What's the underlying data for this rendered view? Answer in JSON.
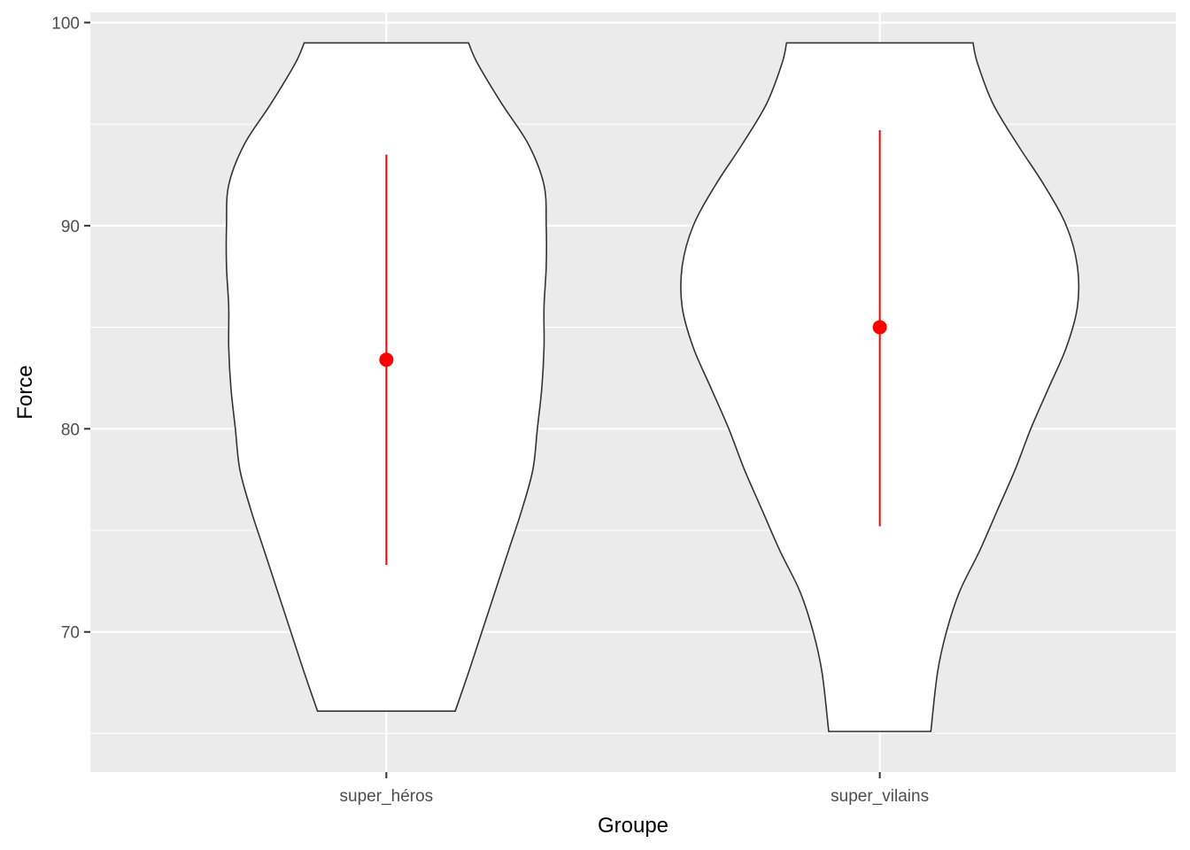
{
  "chart_data": {
    "type": "violin",
    "title": "",
    "xlabel": "Groupe",
    "ylabel": "Force",
    "categories": [
      "super_héros",
      "super_vilains"
    ],
    "ylim": [
      63.1,
      100.5
    ],
    "y_ticks": [
      70,
      80,
      90,
      100
    ],
    "y_tick_labels": [
      "70",
      "80",
      "90",
      "100"
    ],
    "grid": true,
    "panel_background": "#ebebeb",
    "violin_fill": "#ffffff",
    "violin_outline": "#333333",
    "summary_color": "#ff0000",
    "violins": [
      {
        "category": "super_héros",
        "min": 66.1,
        "max": 99,
        "density_profile": [
          {
            "y": 66.1,
            "width": 0.31
          },
          {
            "y": 68,
            "width": 0.37
          },
          {
            "y": 70,
            "width": 0.43
          },
          {
            "y": 72,
            "width": 0.49
          },
          {
            "y": 74,
            "width": 0.55
          },
          {
            "y": 76,
            "width": 0.61
          },
          {
            "y": 78,
            "width": 0.66
          },
          {
            "y": 80,
            "width": 0.68
          },
          {
            "y": 82,
            "width": 0.7
          },
          {
            "y": 84,
            "width": 0.71
          },
          {
            "y": 86,
            "width": 0.71
          },
          {
            "y": 88,
            "width": 0.72
          },
          {
            "y": 90,
            "width": 0.72
          },
          {
            "y": 92,
            "width": 0.71
          },
          {
            "y": 94,
            "width": 0.64
          },
          {
            "y": 96,
            "width": 0.52
          },
          {
            "y": 98,
            "width": 0.41
          },
          {
            "y": 99,
            "width": 0.37
          }
        ],
        "mean": 83.4,
        "lower": 73.3,
        "upper": 93.5
      },
      {
        "category": "super_vilains",
        "min": 65.1,
        "max": 99,
        "density_profile": [
          {
            "y": 65.1,
            "width": 0.23
          },
          {
            "y": 68,
            "width": 0.26
          },
          {
            "y": 70,
            "width": 0.3
          },
          {
            "y": 72,
            "width": 0.36
          },
          {
            "y": 74,
            "width": 0.45
          },
          {
            "y": 76,
            "width": 0.53
          },
          {
            "y": 78,
            "width": 0.61
          },
          {
            "y": 80,
            "width": 0.68
          },
          {
            "y": 82,
            "width": 0.76
          },
          {
            "y": 84,
            "width": 0.84
          },
          {
            "y": 86,
            "width": 0.89
          },
          {
            "y": 88,
            "width": 0.89
          },
          {
            "y": 90,
            "width": 0.84
          },
          {
            "y": 92,
            "width": 0.74
          },
          {
            "y": 94,
            "width": 0.62
          },
          {
            "y": 96,
            "width": 0.51
          },
          {
            "y": 98,
            "width": 0.44
          },
          {
            "y": 99,
            "width": 0.42
          }
        ],
        "mean": 85.0,
        "lower": 75.2,
        "upper": 94.7
      }
    ]
  }
}
